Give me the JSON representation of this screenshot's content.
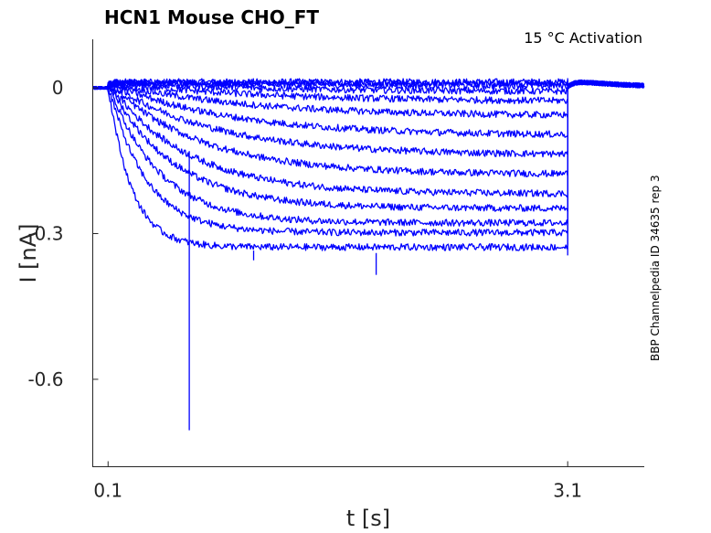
{
  "chart_data": {
    "type": "line",
    "title": "HCN1  Mouse  CHO_FT",
    "annotation": "15 °C  Activation",
    "side_label": "BBP Channelpedia ID 34635 rep 3",
    "xlabel": "t [s]",
    "ylabel": "I [nA]",
    "xlim": [
      0.0,
      3.6
    ],
    "ylim": [
      -0.78,
      0.1
    ],
    "xticks": [
      0.1,
      3.1
    ],
    "xtick_labels": [
      "0.1",
      "3.1"
    ],
    "yticks": [
      0,
      -0.3,
      -0.6
    ],
    "ytick_labels": [
      "0",
      "-0.3",
      "-0.6"
    ],
    "grid": false,
    "color": "#0000ff",
    "step_on": 0.1,
    "step_off": 3.1,
    "steady_state_currents": [
      0.0,
      -0.003,
      -0.008,
      -0.02,
      -0.04,
      -0.07,
      -0.11,
      -0.15,
      -0.19,
      -0.23,
      -0.26,
      -0.29,
      -0.31,
      -0.34
    ],
    "artifacts": [
      {
        "t": 0.63,
        "i": -0.705
      },
      {
        "t": 1.85,
        "i": -0.385
      },
      {
        "t": 1.05,
        "i": -0.355
      }
    ]
  }
}
